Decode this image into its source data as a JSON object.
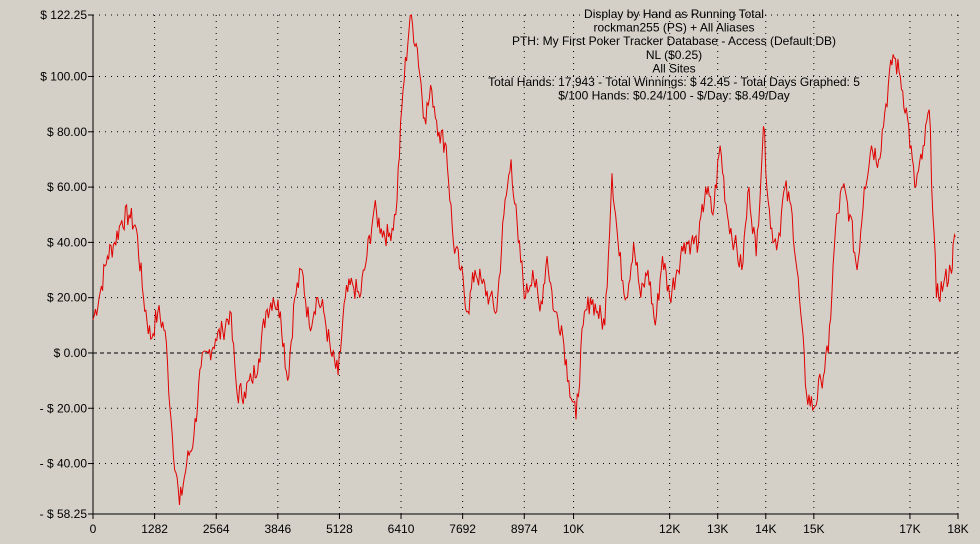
{
  "chart_data": {
    "type": "line",
    "title_lines": [
      "Display by Hand as Running Total",
      "rockman255 (PS) + All Aliases",
      "PTH: My First Poker Tracker Database - Access (Default DB)",
      "NL ($0.25)",
      "All Sites",
      "Total Hands: 17,943 - Total Winnings: $ 42.45 - Total Days Graphed: 5",
      "$/100 Hands: $0.24/100 - $/Day: $8.49/Day"
    ],
    "xlim": [
      0,
      18000
    ],
    "ylim": [
      -58.25,
      122.25
    ],
    "x_ticks": [
      {
        "value": 0,
        "label": "0"
      },
      {
        "value": 1282,
        "label": "1282"
      },
      {
        "value": 2564,
        "label": "2564"
      },
      {
        "value": 3846,
        "label": "3846"
      },
      {
        "value": 5128,
        "label": "5128"
      },
      {
        "value": 6410,
        "label": "6410"
      },
      {
        "value": 7692,
        "label": "7692"
      },
      {
        "value": 8974,
        "label": "8974"
      },
      {
        "value": 10000,
        "label": "10K"
      },
      {
        "value": 12000,
        "label": "12K"
      },
      {
        "value": 13000,
        "label": "13K"
      },
      {
        "value": 14000,
        "label": "14K"
      },
      {
        "value": 15000,
        "label": "15K"
      },
      {
        "value": 17000,
        "label": "17K"
      },
      {
        "value": 18000,
        "label": "18K"
      }
    ],
    "y_ticks": [
      {
        "value": 122.25,
        "label": "$ 122.25"
      },
      {
        "value": 100,
        "label": "$ 100.00"
      },
      {
        "value": 80,
        "label": "$ 80.00"
      },
      {
        "value": 60,
        "label": "$ 60.00"
      },
      {
        "value": 40,
        "label": "$ 40.00"
      },
      {
        "value": 20,
        "label": "$ 20.00"
      },
      {
        "value": 0,
        "label": "$ 0.00"
      },
      {
        "value": -20,
        "label": "- $ 20.00"
      },
      {
        "value": -40,
        "label": "- $ 40.00"
      },
      {
        "value": -58.25,
        "label": "- $ 58.25"
      }
    ],
    "grid": true,
    "zero_line": true,
    "line_color": "#e00000",
    "series": [
      {
        "x": [
          0,
          150,
          300,
          450,
          600,
          750,
          900,
          1050,
          1200,
          1350,
          1500,
          1650,
          1800,
          1950,
          2100,
          2250,
          2400,
          2550,
          2700,
          2850,
          3000,
          3150,
          3300,
          3450,
          3600,
          3750,
          3900,
          4050,
          4200,
          4350,
          4500,
          4650,
          4800,
          4950,
          5100,
          5250,
          5400,
          5550,
          5700,
          5850,
          6000,
          6150,
          6300,
          6450,
          6600,
          6750,
          6900,
          7050,
          7200,
          7350,
          7500,
          7650,
          7800,
          7950,
          8100,
          8250,
          8400,
          8550,
          8700,
          8850,
          9000,
          9150,
          9300,
          9450,
          9600,
          9750,
          9900,
          10050,
          10200,
          10350,
          10500,
          10650,
          10800,
          10950,
          11100,
          11250,
          11400,
          11550,
          11700,
          11850,
          12000,
          12150,
          12300,
          12450,
          12600,
          12750,
          12900,
          13050,
          13200,
          13350,
          13500,
          13650,
          13800,
          13950,
          14100,
          14250,
          14400,
          14550,
          14700,
          14850,
          15000,
          15150,
          15300,
          15450,
          15600,
          15750,
          15900,
          16050,
          16200,
          16350,
          16500,
          16650,
          16800,
          16950,
          17100,
          17250,
          17400,
          17550,
          17700,
          17850,
          17943
        ],
        "y": [
          12,
          22,
          35,
          40,
          48,
          50,
          45,
          20,
          5,
          15,
          8,
          -30,
          -55,
          -40,
          -30,
          -5,
          0,
          5,
          8,
          15,
          -15,
          -14,
          -10,
          -2,
          15,
          20,
          15,
          -10,
          20,
          30,
          10,
          20,
          15,
          0,
          -8,
          20,
          25,
          20,
          35,
          52,
          45,
          42,
          50,
          95,
          122,
          110,
          85,
          95,
          80,
          75,
          40,
          30,
          15,
          30,
          25,
          20,
          15,
          50,
          70,
          40,
          20,
          30,
          15,
          35,
          15,
          10,
          -10,
          -24,
          10,
          20,
          15,
          10,
          65,
          35,
          20,
          40,
          20,
          30,
          10,
          35,
          20,
          30,
          40,
          40,
          40,
          60,
          50,
          75,
          50,
          40,
          30,
          60,
          35,
          82,
          45,
          40,
          60,
          50,
          20,
          -15,
          -20,
          -10,
          0,
          45,
          60,
          50,
          30,
          60,
          75,
          70,
          90,
          108,
          100,
          85,
          60,
          70,
          88,
          20,
          25,
          30,
          42
        ]
      }
    ]
  }
}
